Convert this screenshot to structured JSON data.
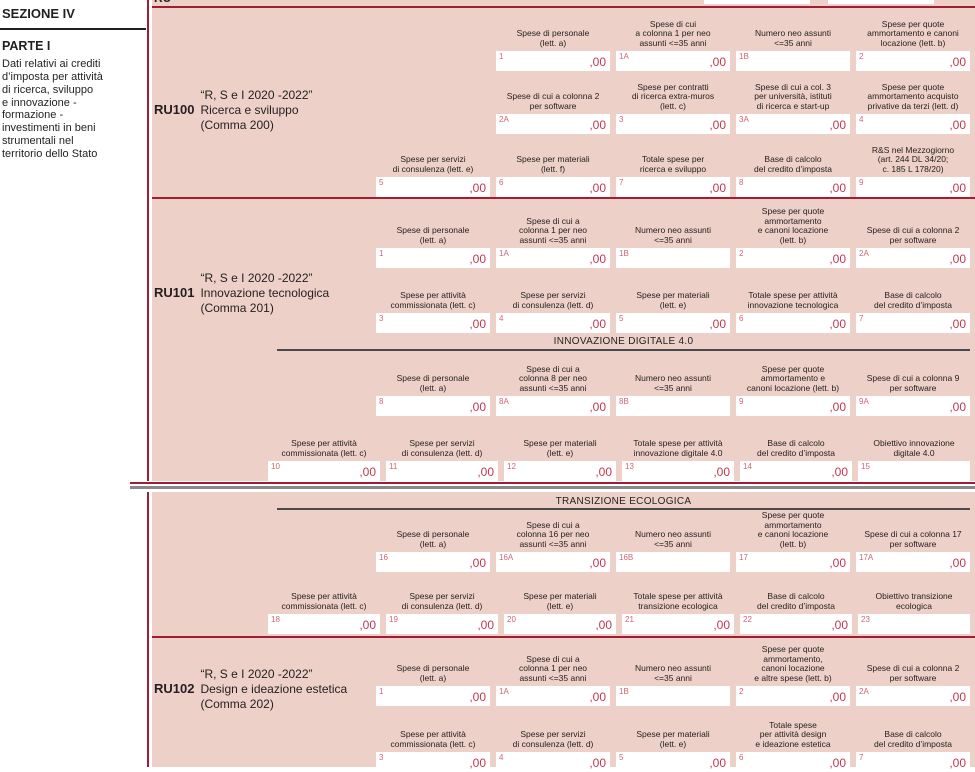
{
  "colors": {
    "form_pink": "#edd0c7",
    "line_red": "#a01d33",
    "value_red": "#c23850",
    "field_number_red": "#d06573"
  },
  "sidebar": {
    "section_title": "SEZIONE IV",
    "part_title": "PARTE I",
    "description": "Dati relativi ai crediti\nd’imposta per attività\ndi ricerca, sviluppo\ne innovazione -\nformazione -\ninvestimenti in beni\nstrumentali nel\nterritorio dello Stato"
  },
  "cut_row": {
    "code_fragment": "RU"
  },
  "ru100": {
    "code": "RU100",
    "title1": "“R, S e I 2020 -2022”",
    "title2": "Ricerca e sviluppo",
    "title3": "(Comma 200)",
    "rows": [
      {
        "fields": [
          {
            "num": "1",
            "label": "Spese di personale\n(lett. a)",
            "value": ",00"
          },
          {
            "num": "1A",
            "label": "Spese di cui\na colonna 1 per neo\nassunti <=35 anni",
            "value": ",00"
          },
          {
            "num": "1B",
            "label": "Numero neo assunti\n<=35 anni",
            "value": ""
          },
          {
            "num": "2",
            "label": "Spese per quote\nammortamento e canoni\nlocazione (lett. b)",
            "value": ",00"
          }
        ]
      },
      {
        "fields": [
          {
            "num": "2A",
            "label": "Spese di cui a colonna 2\nper software",
            "value": ",00"
          },
          {
            "num": "3",
            "label": "Spese per contratti\ndi ricerca extra-muros\n(lett. c)",
            "value": ",00"
          },
          {
            "num": "3A",
            "label": "Spese di cui a col. 3\nper università, istituti\ndi ricerca e start-up",
            "value": ",00"
          },
          {
            "num": "4",
            "label": "Spese per quote\nammortamento acquisto\nprivative da terzi (lett. d)",
            "value": ",00"
          }
        ]
      },
      {
        "fields": [
          {
            "num": "5",
            "label": "Spese per servizi\ndi consulenza (lett. e)",
            "value": ",00"
          },
          {
            "num": "6",
            "label": "Spese per materiali\n(lett. f)",
            "value": ",00"
          },
          {
            "num": "7",
            "label": "Totale spese per\nricerca e sviluppo",
            "value": ",00"
          },
          {
            "num": "8",
            "label": "Base di calcolo\ndel credito d’imposta",
            "value": ",00"
          },
          {
            "num": "9",
            "label": "R&S nel Mezzogiorno\n(art. 244 DL 34/20;\nc. 185 L 178/20)",
            "value": ",00"
          }
        ]
      }
    ]
  },
  "ru101": {
    "code": "RU101",
    "title1": "“R, S e I 2020 -2022”",
    "title2": "Innovazione tecnologica",
    "title3": "(Comma 201)",
    "rows_top": [
      {
        "fields": [
          {
            "num": "1",
            "label": "Spese di personale\n(lett. a)",
            "value": ",00"
          },
          {
            "num": "1A",
            "label": "Spese di cui a\ncolonna 1 per neo\nassunti <=35 anni",
            "value": ",00"
          },
          {
            "num": "1B",
            "label": "Numero neo assunti\n<=35 anni",
            "value": ""
          },
          {
            "num": "2",
            "label": "Spese per quote\nammortamento\ne canoni locazione\n(lett. b)",
            "value": ",00"
          },
          {
            "num": "2A",
            "label": "Spese di cui a colonna 2\nper software",
            "value": ",00"
          }
        ]
      },
      {
        "fields": [
          {
            "num": "3",
            "label": "Spese per attività\ncommissionata (lett. c)",
            "value": ",00"
          },
          {
            "num": "4",
            "label": "Spese per servizi\ndi consulenza (lett. d)",
            "value": ",00"
          },
          {
            "num": "5",
            "label": "Spese per materiali\n(lett. e)",
            "value": ",00"
          },
          {
            "num": "6",
            "label": "Totale spese per attività\ninnovazione tecnologica",
            "value": ",00"
          },
          {
            "num": "7",
            "label": "Base di calcolo\ndel credito d’imposta",
            "value": ",00"
          }
        ]
      }
    ],
    "subheader": "INNOVAZIONE DIGITALE 4.0",
    "rows_digital": [
      {
        "fields": [
          {
            "num": "8",
            "label": "Spese di personale\n(lett. a)",
            "value": ",00"
          },
          {
            "num": "8A",
            "label": "Spese di cui a\ncolonna 8 per neo\nassunti <=35 anni",
            "value": ",00"
          },
          {
            "num": "8B",
            "label": "Numero neo assunti\n<=35 anni",
            "value": ""
          },
          {
            "num": "9",
            "label": "Spese per quote\nammortamento e\ncanoni locazione (lett. b)",
            "value": ",00"
          },
          {
            "num": "9A",
            "label": "Spese di cui a colonna 9\nper software",
            "value": ",00"
          }
        ]
      },
      {
        "fields": [
          {
            "num": "10",
            "label": "Spese per attività\ncommissionata (lett. c)",
            "value": ",00"
          },
          {
            "num": "11",
            "label": "Spese per servizi\ndi consulenza (lett. d)",
            "value": ",00"
          },
          {
            "num": "12",
            "label": "Spese per materiali\n(lett. e)",
            "value": ",00"
          },
          {
            "num": "13",
            "label": "Totale spese per attività\ninnovazione digitale 4.0",
            "value": ",00"
          },
          {
            "num": "14",
            "label": "Base di calcolo\ndel credito d’imposta",
            "value": ",00"
          },
          {
            "num": "15",
            "label": "Obiettivo innovazione\ndigitale 4.0",
            "value": ""
          }
        ]
      }
    ]
  },
  "transizione": {
    "subheader": "TRANSIZIONE ECOLOGICA",
    "rows": [
      {
        "fields": [
          {
            "num": "16",
            "label": "Spese di personale\n(lett. a)",
            "value": ",00"
          },
          {
            "num": "16A",
            "label": "Spese di cui a\ncolonna 16 per neo\nassunti <=35 anni",
            "value": ",00"
          },
          {
            "num": "16B",
            "label": "Numero neo assunti\n<=35 anni",
            "value": ""
          },
          {
            "num": "17",
            "label": "Spese per quote\nammortamento\ne canoni locazione\n(lett. b)",
            "value": ",00"
          },
          {
            "num": "17A",
            "label": "Spese di cui a colonna 17\nper software",
            "value": ",00"
          }
        ]
      },
      {
        "fields": [
          {
            "num": "18",
            "label": "Spese per attività\ncommissionata (lett. c)",
            "value": ",00"
          },
          {
            "num": "19",
            "label": "Spese per servizi\ndi consulenza (lett. d)",
            "value": ",00"
          },
          {
            "num": "20",
            "label": "Spese per materiali\n(lett. e)",
            "value": ",00"
          },
          {
            "num": "21",
            "label": "Totale spese per attività\ntransizione ecologica",
            "value": ",00"
          },
          {
            "num": "22",
            "label": "Base di calcolo\ndel credito d’imposta",
            "value": ",00"
          },
          {
            "num": "23",
            "label": "Obiettivo transizione\necologica",
            "value": ""
          }
        ]
      }
    ]
  },
  "ru102": {
    "code": "RU102",
    "title1": "“R, S e I 2020 -2022”",
    "title2": "Design e ideazione estetica",
    "title3": "(Comma 202)",
    "rows": [
      {
        "fields": [
          {
            "num": "1",
            "label": "Spese di personale\n(lett. a)",
            "value": ",00"
          },
          {
            "num": "1A",
            "label": "Spese di cui a\ncolonna 1 per neo\nassunti <=35 anni",
            "value": ",00"
          },
          {
            "num": "1B",
            "label": "Numero neo assunti\n<=35 anni",
            "value": ""
          },
          {
            "num": "2",
            "label": "Spese per quote\nammortamento,\ncanoni locazione\ne altre spese (lett. b)",
            "value": ",00"
          },
          {
            "num": "2A",
            "label": "Spese di cui a colonna 2\nper software",
            "value": ",00"
          }
        ]
      },
      {
        "fields": [
          {
            "num": "3",
            "label": "Spese per attività\ncommissionata (lett. c)",
            "value": ",00"
          },
          {
            "num": "4",
            "label": "Spese per servizi\ndi consulenza (lett. d)",
            "value": ",00"
          },
          {
            "num": "5",
            "label": "Spese per materiali\n(lett. e)",
            "value": ",00"
          },
          {
            "num": "6",
            "label": "Totale spese\nper attività design\ne ideazione estetica",
            "value": ",00"
          },
          {
            "num": "7",
            "label": "Base di calcolo\ndel credito d’imposta",
            "value": ",00"
          }
        ]
      }
    ]
  }
}
